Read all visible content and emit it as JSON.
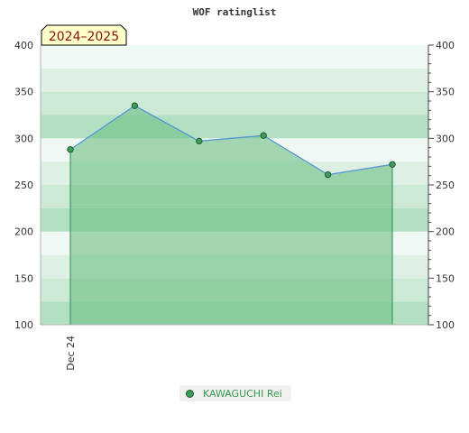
{
  "chart_data": {
    "type": "area",
    "title": "WOF ratinglist",
    "season_badge": "2024–2025",
    "x_tick_labels": [
      "Dec 24"
    ],
    "ylim": [
      100,
      400
    ],
    "y_ticks": [
      100,
      150,
      200,
      250,
      300,
      350,
      400
    ],
    "grid": false,
    "legend_position": "bottom-center",
    "colors": {
      "fill": "#6cbf84",
      "line": "#5a9ad8",
      "marker": "#3f9a5c",
      "band_dark": "#b3dfc2",
      "band_light": "#f0f8f3"
    },
    "series": [
      {
        "name": "KAWAGUCHI Rei",
        "values": [
          288,
          335,
          297,
          303,
          261,
          272
        ]
      }
    ]
  }
}
